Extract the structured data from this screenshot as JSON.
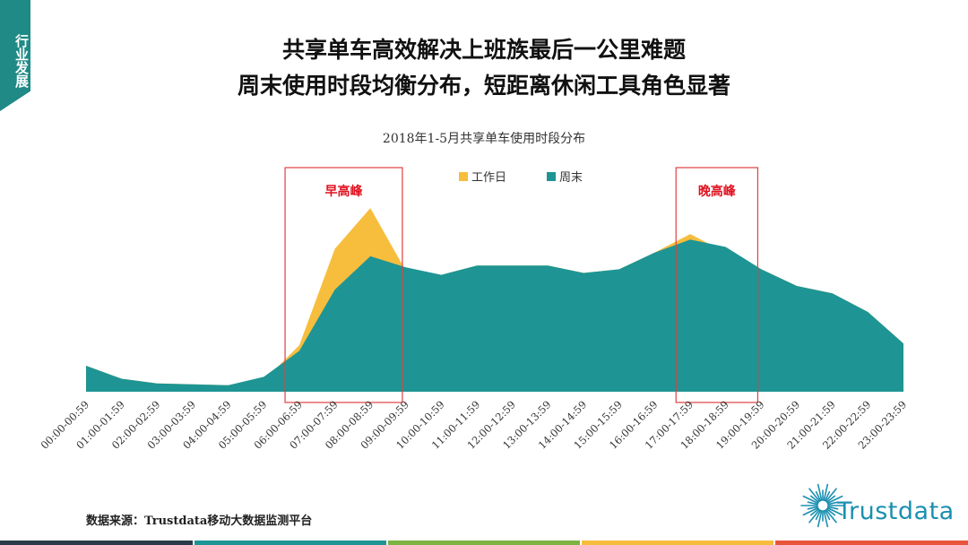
{
  "side_tag": "行业发展",
  "headline": {
    "line1": "共享单车高效解决上班族最后一公里难题",
    "line2": "周末使用时段均衡分布，短距离休闲工具角色显著"
  },
  "footer": {
    "source": "数据来源：Trustdata移动大数据监测平台",
    "logo_text": "Trustdata"
  },
  "colors": {
    "weekday": "#f7bd3d",
    "weekend": "#1e9594",
    "box": "#e04040",
    "box_label": "#e0101e",
    "brand": "#1a8fb0",
    "bars": [
      "#2a3a4a",
      "#1e9594",
      "#7cb342",
      "#f7bd3d",
      "#e8543c"
    ]
  },
  "chart_data": {
    "type": "area",
    "title": "2018年1-5月共享单车使用时段分布",
    "xlabel": "",
    "ylabel": "",
    "legend_position": "top-center",
    "grid": false,
    "ylim": [
      0,
      100
    ],
    "categories": [
      "00:00-00:59",
      "01:00-01:59",
      "02:00-02:59",
      "03:00-03:59",
      "04:00-04:59",
      "05:00-05:59",
      "06:00-06:59",
      "07:00-07:59",
      "08:00-08:59",
      "09:00-09:59",
      "10:00-10:59",
      "11:00-11:59",
      "12:00-12:59",
      "13:00-13:59",
      "14:00-14:59",
      "15:00-15:59",
      "16:00-16:59",
      "17:00-17:59",
      "18:00-18:59",
      "19:00-19:59",
      "20:00-20:59",
      "21:00-21:59",
      "22:00-22:59",
      "23:00-23:59"
    ],
    "series": [
      {
        "name": "工作日",
        "values": [
          14,
          7,
          4.5,
          4,
          3.5,
          6,
          25,
          77,
          99,
          65,
          63,
          68,
          68,
          68,
          64,
          66,
          75,
          85,
          75,
          66,
          57,
          53,
          43,
          26
        ]
      },
      {
        "name": "周末",
        "values": [
          14,
          7,
          4.5,
          4,
          3.5,
          8,
          22,
          55,
          73,
          67,
          63,
          68,
          68,
          68,
          64,
          66,
          75,
          82,
          78,
          66,
          57,
          53,
          43,
          26
        ]
      }
    ],
    "annotations": [
      {
        "label": "早高峰",
        "from": "06:00-06:59",
        "to": "09:00-09:59"
      },
      {
        "label": "晚高峰",
        "from": "17:00-17:59",
        "to": "19:00-19:59"
      }
    ]
  }
}
